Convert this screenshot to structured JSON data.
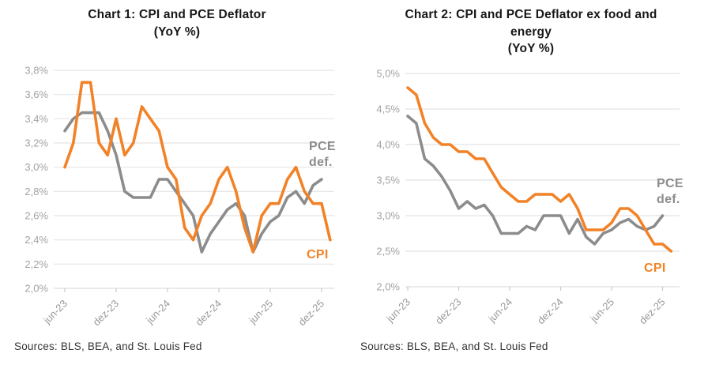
{
  "colors": {
    "cpi": "#F28227",
    "pce": "#8C8C8C",
    "grid": "#E4E4E4",
    "axis_line": "#CFCFCF",
    "tick_mark": "#C9C9C9"
  },
  "chart_data": [
    {
      "type": "line",
      "title": "Chart 1: CPI and PCE Deflator\n(YoY %)",
      "sources": "Sources: BLS, BEA, and St. Louis Fed",
      "grid": true,
      "legend_position": "inline-right",
      "y_min": 2.0,
      "y_max": 3.8,
      "y_step": 0.2,
      "y_tick_labels": [
        "3,8%",
        "3,6%",
        "3,4%",
        "3,2%",
        "3,0%",
        "2,8%",
        "2,6%",
        "2,4%",
        "2,2%",
        "2,0%"
      ],
      "x_tick_labels": [
        "jun-23",
        "dez-23",
        "jun-24",
        "dez-24",
        "jun-25",
        "dez-25"
      ],
      "months_per_tick": 6,
      "x_months": [
        "2023-06",
        "2023-07",
        "2023-08",
        "2023-09",
        "2023-10",
        "2023-11",
        "2023-12",
        "2024-01",
        "2024-02",
        "2024-03",
        "2024-04",
        "2024-05",
        "2024-06",
        "2024-07",
        "2024-08",
        "2024-09",
        "2024-10",
        "2024-11",
        "2024-12",
        "2025-01",
        "2025-02",
        "2025-03",
        "2025-04",
        "2025-05",
        "2025-06",
        "2025-07",
        "2025-08",
        "2025-09",
        "2025-10",
        "2025-11",
        "2025-12",
        "2026-01"
      ],
      "series": [
        {
          "name": "PCE Deflator",
          "legend": "PCE\ndef.",
          "color": "pce",
          "values": [
            3.3,
            3.4,
            3.45,
            3.45,
            3.45,
            3.3,
            3.1,
            2.8,
            2.75,
            2.75,
            2.75,
            2.9,
            2.9,
            2.8,
            2.7,
            2.6,
            2.3,
            2.45,
            2.55,
            2.65,
            2.7,
            2.6,
            2.3,
            2.45,
            2.55,
            2.6,
            2.75,
            2.8,
            2.7,
            2.85,
            2.9
          ]
        },
        {
          "name": "CPI",
          "legend": "CPI",
          "color": "cpi",
          "values": [
            3.0,
            3.2,
            3.7,
            3.7,
            3.2,
            3.1,
            3.4,
            3.1,
            3.2,
            3.5,
            3.4,
            3.3,
            3.0,
            2.9,
            2.5,
            2.4,
            2.6,
            2.7,
            2.9,
            3.0,
            2.8,
            2.5,
            2.3,
            2.6,
            2.7,
            2.7,
            2.9,
            3.0,
            2.8,
            2.7,
            2.7,
            2.4
          ]
        }
      ]
    },
    {
      "type": "line",
      "title": "Chart 2: CPI and PCE Deflator ex food and\nenergy\n(YoY %)",
      "sources": "Sources: BLS, BEA, and St. Louis Fed",
      "grid": true,
      "legend_position": "inline-right",
      "y_min": 2.0,
      "y_max": 5.0,
      "y_step": 0.5,
      "y_tick_labels": [
        "5,0%",
        "4,5%",
        "4,0%",
        "3,5%",
        "3,0%",
        "2,5%",
        "2,0%"
      ],
      "x_tick_labels": [
        "jun-23",
        "dez-23",
        "jun-24",
        "dez-24",
        "jun-25",
        "dez-25"
      ],
      "months_per_tick": 6,
      "x_months": [
        "2023-06",
        "2023-07",
        "2023-08",
        "2023-09",
        "2023-10",
        "2023-11",
        "2023-12",
        "2024-01",
        "2024-02",
        "2024-03",
        "2024-04",
        "2024-05",
        "2024-06",
        "2024-07",
        "2024-08",
        "2024-09",
        "2024-10",
        "2024-11",
        "2024-12",
        "2025-01",
        "2025-02",
        "2025-03",
        "2025-04",
        "2025-05",
        "2025-06",
        "2025-07",
        "2025-08",
        "2025-09",
        "2025-10",
        "2025-11",
        "2025-12",
        "2026-01"
      ],
      "series": [
        {
          "name": "PCE Deflator ex food and energy",
          "legend": "PCE\ndef.",
          "color": "pce",
          "values": [
            4.4,
            4.3,
            3.8,
            3.7,
            3.55,
            3.35,
            3.1,
            3.2,
            3.1,
            3.15,
            3.0,
            2.75,
            2.75,
            2.75,
            2.85,
            2.8,
            3.0,
            3.0,
            3.0,
            2.75,
            2.95,
            2.7,
            2.6,
            2.75,
            2.8,
            2.9,
            2.95,
            2.85,
            2.8,
            2.85,
            3.0
          ]
        },
        {
          "name": "CPI ex food and energy",
          "legend": "CPI",
          "color": "cpi",
          "values": [
            4.8,
            4.7,
            4.3,
            4.1,
            4.0,
            4.0,
            3.9,
            3.9,
            3.8,
            3.8,
            3.6,
            3.4,
            3.3,
            3.2,
            3.2,
            3.3,
            3.3,
            3.3,
            3.2,
            3.3,
            3.1,
            2.8,
            2.8,
            2.8,
            2.9,
            3.1,
            3.1,
            3.0,
            2.8,
            2.6,
            2.6,
            2.5
          ]
        }
      ]
    }
  ]
}
